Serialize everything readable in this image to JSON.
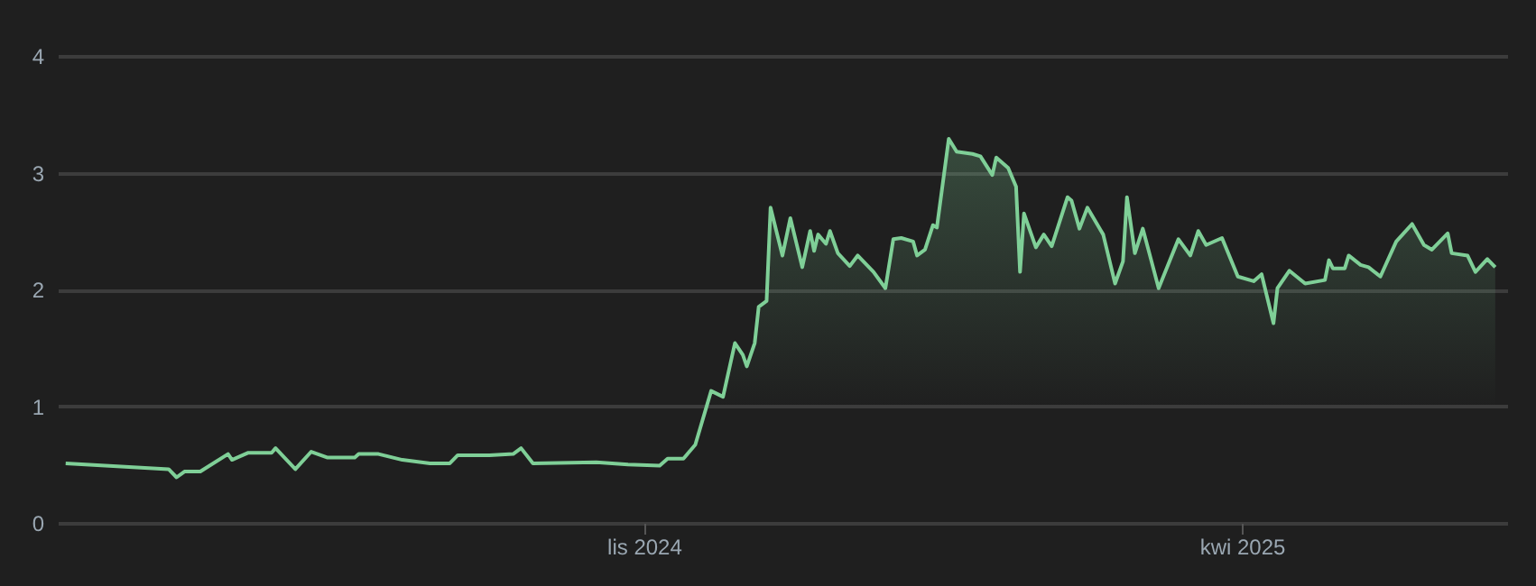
{
  "chart_data": {
    "type": "area",
    "x": [
      "2024-06-08",
      "2024-07-04",
      "2024-07-06",
      "2024-07-08",
      "2024-07-12",
      "2024-07-19",
      "2024-07-20",
      "2024-07-24",
      "2024-07-30",
      "2024-07-31",
      "2024-08-05",
      "2024-08-09",
      "2024-08-13",
      "2024-08-20",
      "2024-08-21",
      "2024-08-26",
      "2024-09-01",
      "2024-09-08",
      "2024-09-13",
      "2024-09-15",
      "2024-09-23",
      "2024-09-29",
      "2024-10-01",
      "2024-10-04",
      "2024-10-20",
      "2024-10-28",
      "2024-11-05",
      "2024-11-07",
      "2024-11-11",
      "2024-11-14",
      "2024-11-18",
      "2024-11-21",
      "2024-11-24",
      "2024-11-26",
      "2024-11-27",
      "2024-11-29",
      "2024-11-30",
      "2024-12-02",
      "2024-12-03",
      "2024-12-06",
      "2024-12-08",
      "2024-12-11",
      "2024-12-13",
      "2024-12-14",
      "2024-12-15",
      "2024-12-17",
      "2024-12-18",
      "2024-12-20",
      "2024-12-23",
      "2024-12-25",
      "2024-12-29",
      "2025-01-01",
      "2025-01-03",
      "2025-01-05",
      "2025-01-08",
      "2025-01-09",
      "2025-01-11",
      "2025-01-13",
      "2025-01-14",
      "2025-01-17",
      "2025-01-19",
      "2025-01-23",
      "2025-01-25",
      "2025-01-28",
      "2025-01-29",
      "2025-02-01",
      "2025-02-03",
      "2025-02-04",
      "2025-02-05",
      "2025-02-08",
      "2025-02-10",
      "2025-02-12",
      "2025-02-16",
      "2025-02-17",
      "2025-02-19",
      "2025-02-21",
      "2025-02-25",
      "2025-02-28",
      "2025-03-02",
      "2025-03-03",
      "2025-03-05",
      "2025-03-07",
      "2025-03-11",
      "2025-03-16",
      "2025-03-19",
      "2025-03-21",
      "2025-03-23",
      "2025-03-27",
      "2025-03-31",
      "2025-04-04",
      "2025-04-06",
      "2025-04-09",
      "2025-04-10",
      "2025-04-13",
      "2025-04-17",
      "2025-04-22",
      "2025-04-23",
      "2025-04-24",
      "2025-04-27",
      "2025-04-28",
      "2025-05-01",
      "2025-05-03",
      "2025-05-06",
      "2025-05-10",
      "2025-05-14",
      "2025-05-17",
      "2025-05-19",
      "2025-05-23",
      "2025-05-24",
      "2025-05-28",
      "2025-05-30",
      "2025-06-02",
      "2025-06-04"
    ],
    "series": [
      {
        "color": "#7fcf97",
        "values": [
          0.51,
          0.46,
          0.39,
          0.44,
          0.44,
          0.59,
          0.54,
          0.6,
          0.6,
          0.64,
          0.46,
          0.61,
          0.56,
          0.56,
          0.59,
          0.59,
          0.54,
          0.51,
          0.51,
          0.58,
          0.58,
          0.59,
          0.64,
          0.51,
          0.52,
          0.5,
          0.49,
          0.55,
          0.55,
          0.67,
          1.13,
          1.08,
          1.54,
          1.44,
          1.34,
          1.54,
          1.85,
          1.9,
          2.7,
          2.29,
          2.61,
          2.19,
          2.5,
          2.33,
          2.47,
          2.39,
          2.5,
          2.31,
          2.2,
          2.29,
          2.15,
          2.01,
          2.43,
          2.44,
          2.41,
          2.29,
          2.34,
          2.55,
          2.53,
          3.29,
          3.18,
          3.16,
          3.14,
          2.98,
          3.13,
          3.04,
          2.88,
          2.15,
          2.65,
          2.36,
          2.47,
          2.37,
          2.79,
          2.76,
          2.52,
          2.7,
          2.47,
          2.05,
          2.24,
          2.79,
          2.31,
          2.52,
          2.01,
          2.43,
          2.29,
          2.5,
          2.38,
          2.44,
          2.11,
          2.07,
          2.13,
          1.71,
          2.01,
          2.16,
          2.05,
          2.08,
          2.25,
          2.18,
          2.18,
          2.29,
          2.21,
          2.19,
          2.11,
          2.41,
          2.56,
          2.38,
          2.34,
          2.48,
          2.31,
          2.29,
          2.15,
          2.26,
          2.19
        ]
      }
    ],
    "xlim": [
      "2024-06-06",
      "2025-06-07"
    ],
    "xticks": [
      {
        "value": "2024-11-01",
        "label": "lis 2024"
      },
      {
        "value": "2025-04-01",
        "label": "kwi 2025"
      }
    ],
    "ylim": [
      0,
      4
    ],
    "yticks": [
      0,
      1,
      2,
      3,
      4
    ],
    "grid": "y"
  }
}
